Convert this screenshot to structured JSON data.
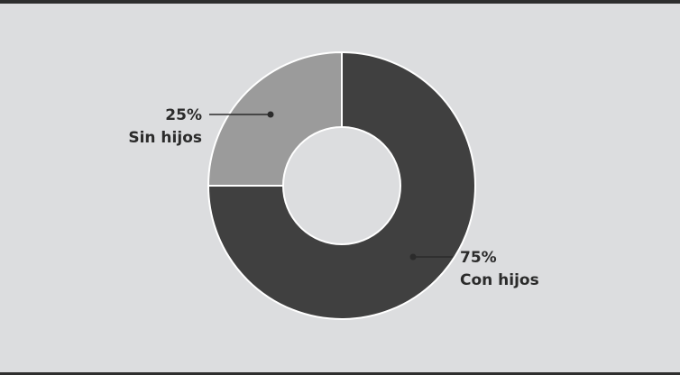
{
  "chart_data": {
    "type": "pie",
    "donut": true,
    "slices": [
      {
        "label": "Sin hijos",
        "value": 25,
        "value_label": "25%",
        "color": "#9b9b9b"
      },
      {
        "label": "Con hijos",
        "value": 75,
        "value_label": "75%",
        "color": "#404040"
      }
    ],
    "colors": {
      "background": "#dcdddf",
      "border": "#2e2e2e",
      "text": "#2b2b2b",
      "separator": "#ffffff"
    }
  }
}
